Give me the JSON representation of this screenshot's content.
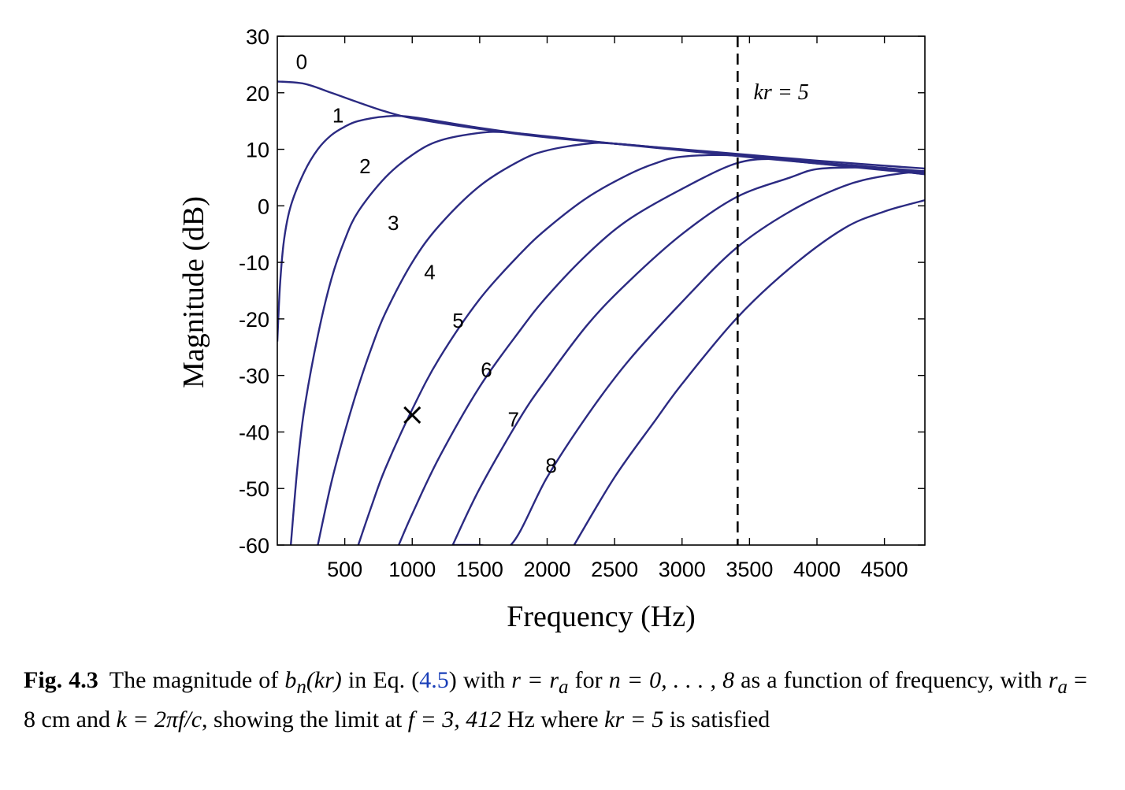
{
  "chart_data": {
    "type": "line",
    "xlabel": "Frequency (Hz)",
    "ylabel": "Magnitude (dB)",
    "xlim": [
      0,
      4800
    ],
    "ylim": [
      -60,
      30
    ],
    "xticks": [
      500,
      1000,
      1500,
      2000,
      2500,
      3000,
      3500,
      4000,
      4500
    ],
    "yticks": [
      30,
      20,
      10,
      0,
      -10,
      -20,
      -30,
      -40,
      -50,
      -60
    ],
    "grid": false,
    "line_color": "#2b2a82",
    "series": [
      {
        "name": "0",
        "points": [
          [
            0,
            22.0
          ],
          [
            200,
            21.6
          ],
          [
            400,
            20.0
          ],
          [
            600,
            18.3
          ],
          [
            800,
            16.7
          ],
          [
            1000,
            15.5
          ],
          [
            1500,
            13.6
          ],
          [
            2000,
            12.1
          ],
          [
            2500,
            11.0
          ],
          [
            3000,
            10.0
          ],
          [
            3500,
            9.0
          ],
          [
            4000,
            8.0
          ],
          [
            4500,
            7.1
          ],
          [
            4800,
            6.6
          ]
        ]
      },
      {
        "name": "1",
        "points": [
          [
            0,
            -24.0
          ],
          [
            20,
            -14.0
          ],
          [
            50,
            -6.0
          ],
          [
            100,
            0.0
          ],
          [
            200,
            6.0
          ],
          [
            300,
            10.0
          ],
          [
            400,
            12.5
          ],
          [
            500,
            14.0
          ],
          [
            600,
            15.0
          ],
          [
            800,
            15.8
          ],
          [
            1000,
            15.7
          ],
          [
            1500,
            13.8
          ],
          [
            2000,
            12.2
          ],
          [
            2500,
            11.0
          ],
          [
            3000,
            9.9
          ],
          [
            3500,
            8.7
          ],
          [
            4000,
            7.7
          ],
          [
            4500,
            6.7
          ],
          [
            4800,
            6.1
          ]
        ]
      },
      {
        "name": "2",
        "points": [
          [
            100,
            -60.0
          ],
          [
            150,
            -46.0
          ],
          [
            200,
            -36.0
          ],
          [
            300,
            -23.0
          ],
          [
            400,
            -13.0
          ],
          [
            500,
            -6.0
          ],
          [
            600,
            -1.0
          ],
          [
            800,
            5.0
          ],
          [
            1000,
            9.0
          ],
          [
            1200,
            11.5
          ],
          [
            1500,
            12.9
          ],
          [
            1700,
            13.0
          ],
          [
            2000,
            12.3
          ],
          [
            2500,
            11.0
          ],
          [
            3000,
            9.8
          ],
          [
            3500,
            8.6
          ],
          [
            4000,
            7.5
          ],
          [
            4500,
            6.5
          ],
          [
            4800,
            5.9
          ]
        ]
      },
      {
        "name": "3",
        "points": [
          [
            300,
            -60.0
          ],
          [
            400,
            -49.0
          ],
          [
            500,
            -40.0
          ],
          [
            600,
            -32.0
          ],
          [
            700,
            -25.0
          ],
          [
            800,
            -19.0
          ],
          [
            1000,
            -10.0
          ],
          [
            1200,
            -3.5
          ],
          [
            1500,
            3.5
          ],
          [
            1800,
            8.0
          ],
          [
            2000,
            9.8
          ],
          [
            2300,
            11.0
          ],
          [
            2500,
            11.0
          ],
          [
            3000,
            9.9
          ],
          [
            3500,
            8.7
          ],
          [
            4000,
            7.5
          ],
          [
            4500,
            6.3
          ],
          [
            4800,
            5.7
          ]
        ]
      },
      {
        "name": "4",
        "points": [
          [
            600,
            -60.0
          ],
          [
            700,
            -53.0
          ],
          [
            800,
            -46.5
          ],
          [
            1000,
            -36.0
          ],
          [
            1200,
            -27.0
          ],
          [
            1500,
            -16.5
          ],
          [
            1800,
            -8.5
          ],
          [
            2000,
            -4.0
          ],
          [
            2300,
            1.5
          ],
          [
            2600,
            5.5
          ],
          [
            2800,
            7.5
          ],
          [
            3000,
            8.7
          ],
          [
            3400,
            8.9
          ],
          [
            4000,
            7.6
          ],
          [
            4500,
            6.4
          ],
          [
            4800,
            5.6
          ]
        ]
      },
      {
        "name": "5",
        "points": [
          [
            900,
            -60.0
          ],
          [
            1000,
            -54.5
          ],
          [
            1200,
            -44.5
          ],
          [
            1500,
            -32.0
          ],
          [
            1800,
            -22.0
          ],
          [
            2000,
            -16.0
          ],
          [
            2300,
            -8.5
          ],
          [
            2600,
            -2.5
          ],
          [
            3000,
            3.0
          ],
          [
            3400,
            7.5
          ],
          [
            3700,
            8.3
          ],
          [
            4000,
            7.7
          ],
          [
            4500,
            6.4
          ],
          [
            4800,
            5.6
          ]
        ]
      },
      {
        "name": "6",
        "points": [
          [
            1300,
            -60.0
          ],
          [
            1500,
            -50.0
          ],
          [
            1800,
            -37.5
          ],
          [
            2000,
            -30.5
          ],
          [
            2300,
            -21.0
          ],
          [
            2600,
            -13.5
          ],
          [
            3000,
            -5.0
          ],
          [
            3400,
            1.5
          ],
          [
            3800,
            5.0
          ],
          [
            4000,
            6.5
          ],
          [
            4300,
            6.8
          ],
          [
            4500,
            6.7
          ],
          [
            4800,
            5.8
          ]
        ]
      },
      {
        "name": "7",
        "points": [
          [
            1300,
            -60.0
          ],
          [
            1500,
            -60.0
          ],
          [
            1730,
            -60.0
          ],
          [
            2000,
            -48.0
          ],
          [
            2300,
            -37.0
          ],
          [
            2600,
            -27.5
          ],
          [
            3000,
            -17.0
          ],
          [
            3400,
            -7.5
          ],
          [
            3800,
            -1.0
          ],
          [
            4200,
            3.5
          ],
          [
            4500,
            5.3
          ],
          [
            4800,
            6.2
          ]
        ]
      },
      {
        "name": "8",
        "points": [
          [
            2200,
            -60.0
          ],
          [
            2500,
            -48.0
          ],
          [
            2800,
            -38.0
          ],
          [
            3000,
            -31.5
          ],
          [
            3400,
            -20.0
          ],
          [
            3800,
            -11.0
          ],
          [
            4200,
            -4.0
          ],
          [
            4500,
            -1.0
          ],
          [
            4800,
            1.0
          ]
        ]
      }
    ],
    "curve_labels": [
      {
        "text": "0",
        "x": 180,
        "y": 25.5
      },
      {
        "text": "1",
        "x": 450,
        "y": 16.0
      },
      {
        "text": "2",
        "x": 650,
        "y": 7.0
      },
      {
        "text": "3",
        "x": 860,
        "y": -3.0
      },
      {
        "text": "4",
        "x": 1130,
        "y": -11.7
      },
      {
        "text": "5",
        "x": 1340,
        "y": -20.3
      },
      {
        "text": "6",
        "x": 1550,
        "y": -29.0
      },
      {
        "text": "7",
        "x": 1750,
        "y": -37.8
      },
      {
        "text": "8",
        "x": 2030,
        "y": -45.9
      }
    ],
    "vline": {
      "x": 3412,
      "style": "dashed",
      "label": "kr = 5",
      "label_x": 3530,
      "label_y": 20.0
    },
    "marker": {
      "x": 1000,
      "y": -37,
      "symbol": "×"
    }
  },
  "caption": {
    "label": "Fig. 4.3",
    "t1": "The magnitude of ",
    "b": "b",
    "n": "n",
    "kr": "(kr)",
    "t2": " in Eq. (",
    "ref": "4.5",
    "t3": ") with ",
    "r_eq": "r = r",
    "a1": "a",
    "t4": " for ",
    "n_range": "n = 0, . . . , 8",
    "t5": " as a function of frequency, with ",
    "r2": "r",
    "a2": "a",
    "t6": " = 8 cm and ",
    "k_eq": "k = 2πf/c",
    "t7": ", showing the limit at ",
    "f_eq": "f = 3, 412",
    "t8": " Hz where ",
    "kr_eq": "kr = 5",
    "t9": " is satisfied"
  }
}
